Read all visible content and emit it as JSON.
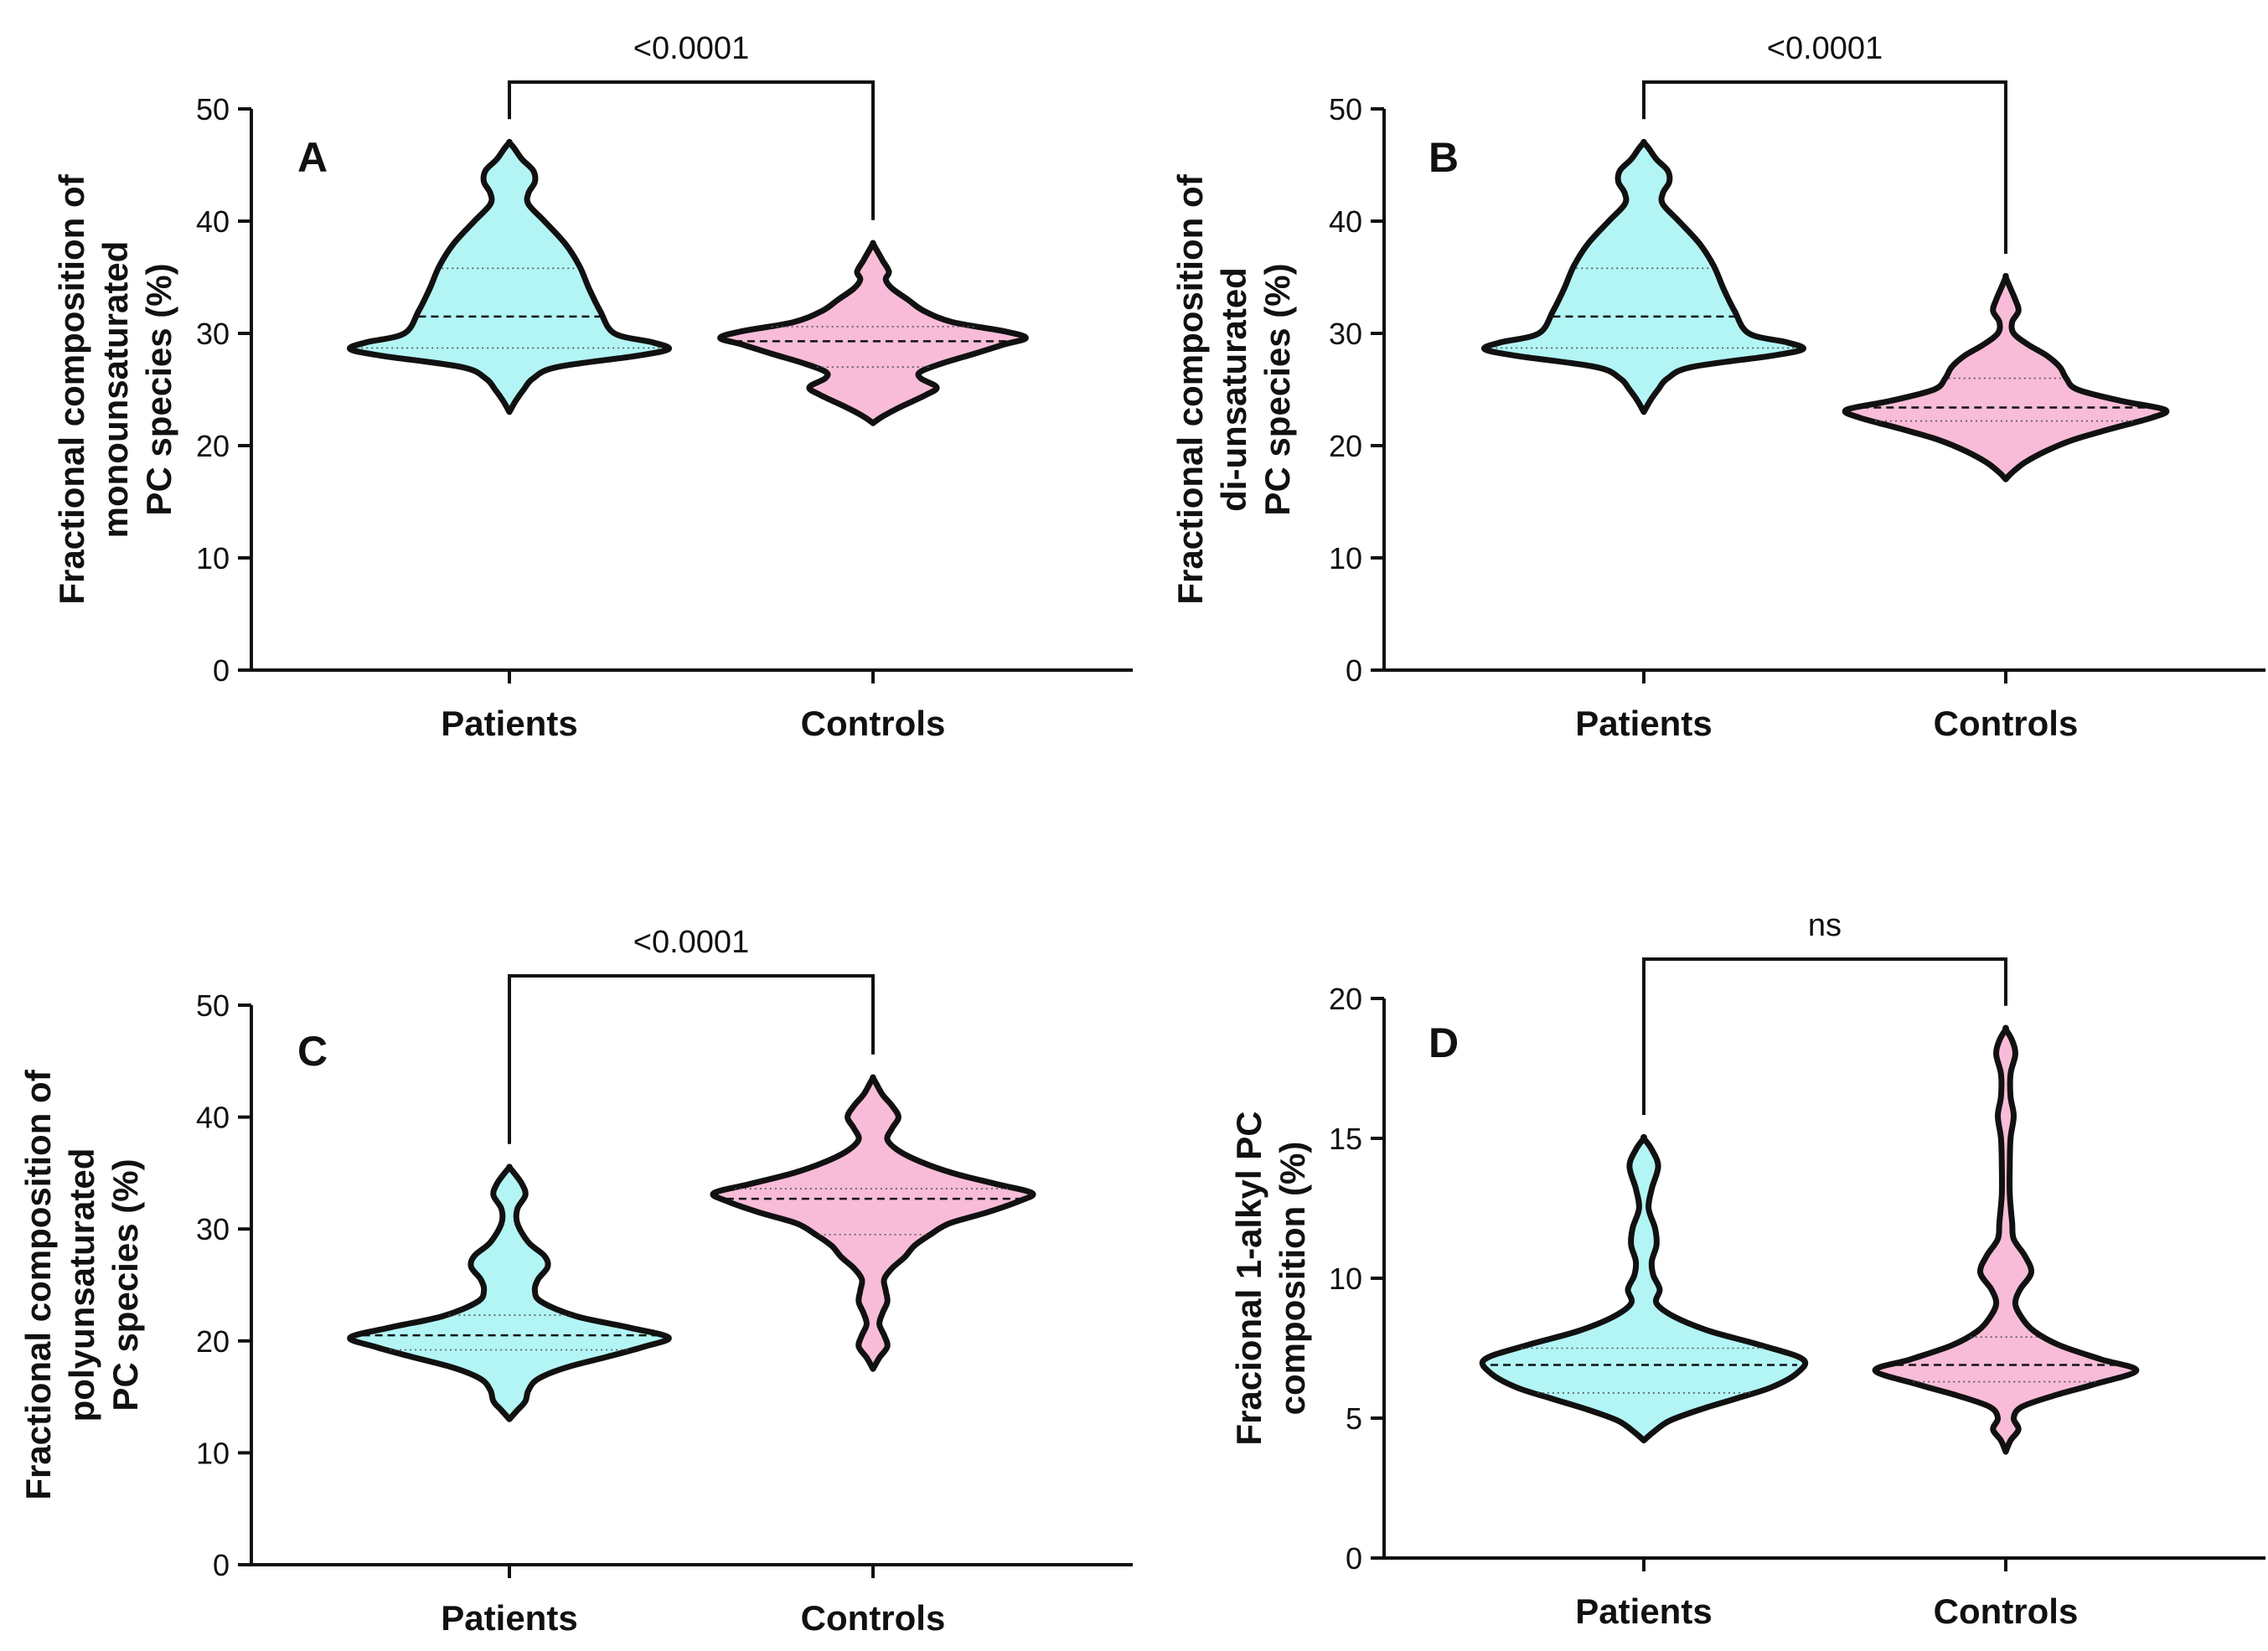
{
  "colors": {
    "patients": "#b3f5f5",
    "controls": "#f8bcd8",
    "outline": "#111111"
  },
  "chart_data": [
    {
      "type": "violin",
      "panel": "A",
      "ylabel": "Fractional composition of\nmonounsaturated\nPC species (%)",
      "ylim": [
        0,
        50
      ],
      "yticks": [
        0,
        10,
        20,
        30,
        40,
        50
      ],
      "categories": [
        "Patients",
        "Controls"
      ],
      "comparison": "<0.0001",
      "series": [
        {
          "name": "Patients",
          "min": 23,
          "max": 47,
          "median": 31.5,
          "q1": 28.7,
          "q3": 35.8,
          "density": [
            [
              23,
              0
            ],
            [
              24,
              0.04
            ],
            [
              25,
              0.09
            ],
            [
              26,
              0.15
            ],
            [
              27,
              0.3
            ],
            [
              28,
              0.8
            ],
            [
              28.6,
              1.0
            ],
            [
              29.2,
              0.9
            ],
            [
              30,
              0.66
            ],
            [
              32,
              0.57
            ],
            [
              34,
              0.5
            ],
            [
              36,
              0.44
            ],
            [
              38,
              0.35
            ],
            [
              40,
              0.22
            ],
            [
              41.5,
              0.12
            ],
            [
              42.5,
              0.12
            ],
            [
              43.5,
              0.16
            ],
            [
              44.5,
              0.15
            ],
            [
              45.5,
              0.08
            ],
            [
              46.5,
              0.03
            ],
            [
              47,
              0
            ]
          ]
        },
        {
          "name": "Controls",
          "min": 22,
          "max": 38,
          "median": 29.3,
          "q1": 27.0,
          "q3": 30.6,
          "density": [
            [
              22,
              0
            ],
            [
              22.6,
              0.06
            ],
            [
              23.5,
              0.18
            ],
            [
              24.5,
              0.33
            ],
            [
              25.2,
              0.4
            ],
            [
              26,
              0.3
            ],
            [
              26.6,
              0.3
            ],
            [
              27.4,
              0.45
            ],
            [
              28.2,
              0.64
            ],
            [
              29,
              0.82
            ],
            [
              29.6,
              0.96
            ],
            [
              30.2,
              0.82
            ],
            [
              31,
              0.5
            ],
            [
              32,
              0.32
            ],
            [
              33,
              0.22
            ],
            [
              34,
              0.12
            ],
            [
              34.8,
              0.08
            ],
            [
              35.5,
              0.1
            ],
            [
              36.5,
              0.06
            ],
            [
              37.5,
              0.02
            ],
            [
              38,
              0
            ]
          ]
        }
      ]
    },
    {
      "type": "violin",
      "panel": "B",
      "ylabel": "Fractional composition of\ndi-unsaturated\nPC species (%)",
      "ylim": [
        0,
        50
      ],
      "yticks": [
        0,
        10,
        20,
        30,
        40,
        50
      ],
      "categories": [
        "Patients",
        "Controls"
      ],
      "comparison": "<0.0001",
      "series": [
        {
          "name": "Patients",
          "min": 23,
          "max": 47,
          "median": 31.5,
          "q1": 28.7,
          "q3": 35.8,
          "density": [
            [
              23,
              0
            ],
            [
              24,
              0.04
            ],
            [
              25,
              0.09
            ],
            [
              26,
              0.15
            ],
            [
              27,
              0.3
            ],
            [
              28,
              0.8
            ],
            [
              28.6,
              1.0
            ],
            [
              29.2,
              0.9
            ],
            [
              30,
              0.66
            ],
            [
              32,
              0.57
            ],
            [
              34,
              0.5
            ],
            [
              36,
              0.44
            ],
            [
              38,
              0.35
            ],
            [
              40,
              0.22
            ],
            [
              41.5,
              0.12
            ],
            [
              42.5,
              0.12
            ],
            [
              43.5,
              0.16
            ],
            [
              44.5,
              0.15
            ],
            [
              45.5,
              0.08
            ],
            [
              46.5,
              0.03
            ],
            [
              47,
              0
            ]
          ]
        },
        {
          "name": "Controls",
          "min": 17,
          "max": 35,
          "median": 23.4,
          "q1": 22.2,
          "q3": 26.0,
          "density": [
            [
              17,
              0
            ],
            [
              17.6,
              0.04
            ],
            [
              18.5,
              0.12
            ],
            [
              19.5,
              0.25
            ],
            [
              20.5,
              0.42
            ],
            [
              21.5,
              0.66
            ],
            [
              22.5,
              0.92
            ],
            [
              23.2,
              1.0
            ],
            [
              24,
              0.72
            ],
            [
              25,
              0.45
            ],
            [
              26,
              0.38
            ],
            [
              27,
              0.34
            ],
            [
              28,
              0.26
            ],
            [
              29,
              0.14
            ],
            [
              30,
              0.05
            ],
            [
              31,
              0.04
            ],
            [
              32,
              0.08
            ],
            [
              33,
              0.06
            ],
            [
              34,
              0.03
            ],
            [
              35,
              0
            ]
          ]
        }
      ]
    },
    {
      "type": "violin",
      "panel": "C",
      "ylabel": "Fractional composition of\npolyunsaturated\nPC species (%)",
      "ylim": [
        0,
        50
      ],
      "yticks": [
        0,
        10,
        20,
        30,
        40,
        50
      ],
      "categories": [
        "Patients",
        "Controls"
      ],
      "comparison": "<0.0001",
      "series": [
        {
          "name": "Patients",
          "min": 13,
          "max": 35.5,
          "median": 20.5,
          "q1": 19.2,
          "q3": 22.3,
          "density": [
            [
              13,
              0
            ],
            [
              13.8,
              0.05
            ],
            [
              14.6,
              0.1
            ],
            [
              15.6,
              0.12
            ],
            [
              16.6,
              0.18
            ],
            [
              17.6,
              0.35
            ],
            [
              18.6,
              0.62
            ],
            [
              19.5,
              0.85
            ],
            [
              20.3,
              1.0
            ],
            [
              21.2,
              0.75
            ],
            [
              22.2,
              0.42
            ],
            [
              23.5,
              0.2
            ],
            [
              24.5,
              0.16
            ],
            [
              25.5,
              0.18
            ],
            [
              26.6,
              0.24
            ],
            [
              27.6,
              0.22
            ],
            [
              28.8,
              0.12
            ],
            [
              30.5,
              0.05
            ],
            [
              31.8,
              0.05
            ],
            [
              33,
              0.1
            ],
            [
              34,
              0.08
            ],
            [
              35,
              0.03
            ],
            [
              35.5,
              0
            ]
          ]
        },
        {
          "name": "Controls",
          "min": 17.5,
          "max": 43.5,
          "median": 32.7,
          "q1": 29.5,
          "q3": 33.6,
          "density": [
            [
              17.5,
              0
            ],
            [
              18.5,
              0.04
            ],
            [
              19.5,
              0.09
            ],
            [
              20.5,
              0.07
            ],
            [
              21.5,
              0.04
            ],
            [
              22.5,
              0.06
            ],
            [
              23.5,
              0.09
            ],
            [
              24.5,
              0.08
            ],
            [
              25.5,
              0.07
            ],
            [
              26.5,
              0.12
            ],
            [
              27.5,
              0.2
            ],
            [
              28.5,
              0.26
            ],
            [
              29.5,
              0.36
            ],
            [
              30.5,
              0.48
            ],
            [
              31.5,
              0.72
            ],
            [
              32.5,
              0.92
            ],
            [
              33.2,
              1.0
            ],
            [
              34,
              0.78
            ],
            [
              35,
              0.5
            ],
            [
              36,
              0.3
            ],
            [
              37,
              0.16
            ],
            [
              38,
              0.09
            ],
            [
              39,
              0.12
            ],
            [
              40,
              0.16
            ],
            [
              41,
              0.12
            ],
            [
              42,
              0.06
            ],
            [
              43,
              0.02
            ],
            [
              43.5,
              0
            ]
          ]
        }
      ]
    },
    {
      "type": "violin",
      "panel": "D",
      "ylabel": "Fracional 1-alkyl PC\ncomposition (%)",
      "ylim": [
        0,
        20
      ],
      "yticks": [
        0,
        5,
        10,
        15,
        20
      ],
      "categories": [
        "Patients",
        "Controls"
      ],
      "comparison": "ns",
      "series": [
        {
          "name": "Patients",
          "min": 4.2,
          "max": 15,
          "median": 6.9,
          "q1": 5.9,
          "q3": 7.5,
          "density": [
            [
              4.2,
              0
            ],
            [
              4.5,
              0.06
            ],
            [
              4.9,
              0.16
            ],
            [
              5.3,
              0.35
            ],
            [
              5.7,
              0.58
            ],
            [
              6.1,
              0.8
            ],
            [
              6.6,
              0.96
            ],
            [
              7.1,
              1.0
            ],
            [
              7.6,
              0.74
            ],
            [
              8.1,
              0.42
            ],
            [
              8.6,
              0.2
            ],
            [
              9.1,
              0.08
            ],
            [
              9.6,
              0.1
            ],
            [
              10.1,
              0.06
            ],
            [
              10.6,
              0.05
            ],
            [
              11.2,
              0.08
            ],
            [
              11.8,
              0.07
            ],
            [
              12.5,
              0.03
            ],
            [
              13.2,
              0.05
            ],
            [
              14,
              0.09
            ],
            [
              14.6,
              0.05
            ],
            [
              15,
              0
            ]
          ]
        },
        {
          "name": "Controls",
          "min": 3.8,
          "max": 18.9,
          "median": 6.9,
          "q1": 6.3,
          "q3": 7.9,
          "density": [
            [
              3.8,
              0
            ],
            [
              4.2,
              0.03
            ],
            [
              4.6,
              0.08
            ],
            [
              5.0,
              0.05
            ],
            [
              5.4,
              0.1
            ],
            [
              5.8,
              0.3
            ],
            [
              6.2,
              0.55
            ],
            [
              6.7,
              0.82
            ],
            [
              7.1,
              0.6
            ],
            [
              7.6,
              0.34
            ],
            [
              8.1,
              0.18
            ],
            [
              8.6,
              0.1
            ],
            [
              9.1,
              0.06
            ],
            [
              9.6,
              0.09
            ],
            [
              10.2,
              0.16
            ],
            [
              10.8,
              0.12
            ],
            [
              11.4,
              0.05
            ],
            [
              12,
              0.04
            ],
            [
              13,
              0.025
            ],
            [
              14,
              0.025
            ],
            [
              15,
              0.03
            ],
            [
              15.8,
              0.05
            ],
            [
              16.5,
              0.03
            ],
            [
              17.3,
              0.03
            ],
            [
              18,
              0.06
            ],
            [
              18.5,
              0.04
            ],
            [
              18.9,
              0
            ]
          ]
        }
      ]
    }
  ]
}
